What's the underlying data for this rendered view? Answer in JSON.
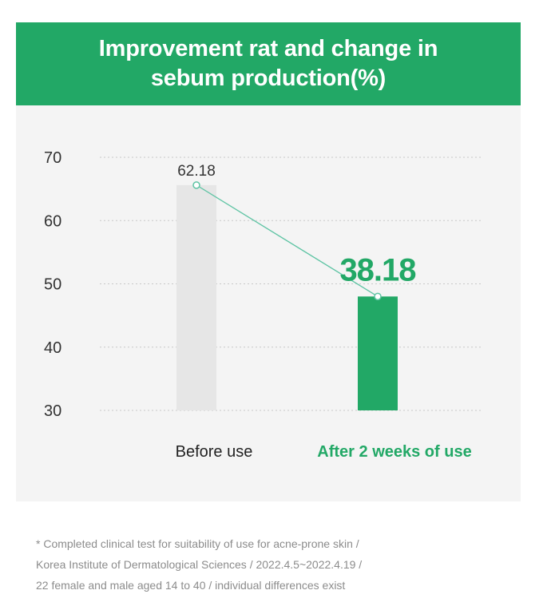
{
  "header": {
    "title": "Improvement rat and change in sebum production(%)"
  },
  "chart_data": {
    "type": "bar",
    "title": "Improvement rat and change in sebum production(%)",
    "categories": [
      "Before use",
      "After 2 weeks of use"
    ],
    "values": [
      62.18,
      38.18
    ],
    "data_labels": [
      "62.18",
      "38.18"
    ],
    "ylim": [
      30,
      70
    ],
    "yticks": [
      "70",
      "60",
      "50",
      "40",
      "30"
    ],
    "grid": true,
    "connector_line": true,
    "colors": {
      "before_bar": "#e6e6e6",
      "after_bar": "#22a866",
      "accent_text": "#22a866",
      "connector": "#5fc4a4",
      "grid": "#c8c8c8",
      "axis_text": "#333333"
    }
  },
  "footnote": {
    "lines": [
      "* Completed clinical test for suitability of use for acne-prone skin /",
      "Korea Institute of Dermatological Sciences / 2022.4.5~2022.4.19 /",
      "22 female and male aged 14 to 40 / individual differences exist"
    ]
  }
}
